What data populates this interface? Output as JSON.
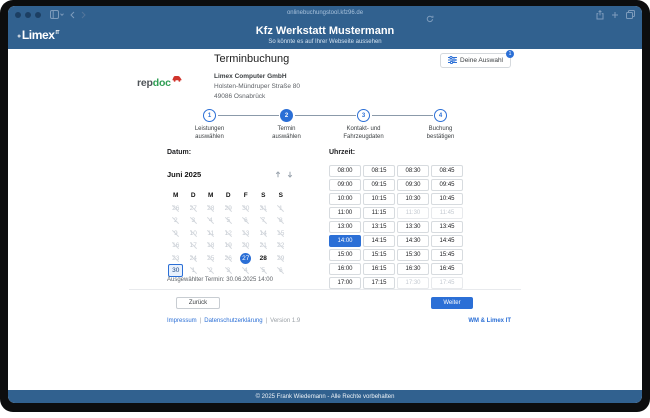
{
  "colors": {
    "accent": "#2b6fd6",
    "header_blue": "#31618f",
    "link": "#2b6fd6",
    "disabled": "#c4cad1"
  },
  "browser": {
    "url": "onlinebuchungstool.kfz96.de"
  },
  "header": {
    "logo_text": "Limex",
    "logo_sup": "IT",
    "title": "Kfz Werkstatt Mustermann",
    "subtitle": "So könnte es auf Ihrer Webseite aussehen"
  },
  "booking": {
    "title": "Terminbuchung",
    "brand": {
      "rep": "rep",
      "doc": "doc"
    },
    "company": {
      "name": "Limex Computer GmbH",
      "street": "Holsten-Mündruper Straße 80",
      "city": "49086 Osnabrück"
    },
    "selection_button": {
      "label": "Deine Auswahl",
      "badge": "1"
    },
    "steps": [
      {
        "num": "1",
        "line1": "Leistungen",
        "line2": "auswählen",
        "active": false
      },
      {
        "num": "2",
        "line1": "Termin",
        "line2": "auswählen",
        "active": true
      },
      {
        "num": "3",
        "line1": "Kontakt- und",
        "line2": "Fahrzeugdaten",
        "active": false
      },
      {
        "num": "4",
        "line1": "Buchung",
        "line2": "bestätigen",
        "active": false
      }
    ],
    "date": {
      "label": "Datum:",
      "month": "Juni 2025",
      "weekdays": [
        "M",
        "D",
        "M",
        "D",
        "F",
        "S",
        "S"
      ],
      "days": [
        {
          "n": "26",
          "s": "off"
        },
        {
          "n": "27",
          "s": "off"
        },
        {
          "n": "28",
          "s": "off"
        },
        {
          "n": "29",
          "s": "off"
        },
        {
          "n": "30",
          "s": "off"
        },
        {
          "n": "31",
          "s": "off"
        },
        {
          "n": "1",
          "s": "off"
        },
        {
          "n": "2",
          "s": "off"
        },
        {
          "n": "3",
          "s": "off"
        },
        {
          "n": "4",
          "s": "off"
        },
        {
          "n": "5",
          "s": "off"
        },
        {
          "n": "6",
          "s": "off"
        },
        {
          "n": "7",
          "s": "off"
        },
        {
          "n": "8",
          "s": "off"
        },
        {
          "n": "9",
          "s": "off"
        },
        {
          "n": "10",
          "s": "off"
        },
        {
          "n": "11",
          "s": "off"
        },
        {
          "n": "12",
          "s": "off"
        },
        {
          "n": "13",
          "s": "off"
        },
        {
          "n": "14",
          "s": "off"
        },
        {
          "n": "15",
          "s": "off"
        },
        {
          "n": "16",
          "s": "off"
        },
        {
          "n": "17",
          "s": "off"
        },
        {
          "n": "18",
          "s": "off"
        },
        {
          "n": "19",
          "s": "off"
        },
        {
          "n": "20",
          "s": "off"
        },
        {
          "n": "21",
          "s": "off"
        },
        {
          "n": "22",
          "s": "off"
        },
        {
          "n": "23",
          "s": "off"
        },
        {
          "n": "24",
          "s": "off"
        },
        {
          "n": "25",
          "s": "off"
        },
        {
          "n": "26",
          "s": "off"
        },
        {
          "n": "27",
          "s": "today"
        },
        {
          "n": "28",
          "s": "free"
        },
        {
          "n": "29",
          "s": "off"
        },
        {
          "n": "30",
          "s": "sel"
        },
        {
          "n": "1",
          "s": "off"
        },
        {
          "n": "2",
          "s": "off"
        },
        {
          "n": "3",
          "s": "off"
        },
        {
          "n": "4",
          "s": "off"
        },
        {
          "n": "5",
          "s": "off"
        },
        {
          "n": "6",
          "s": "off"
        }
      ]
    },
    "time": {
      "label": "Uhrzeit:",
      "slots": [
        {
          "t": "08:00",
          "s": "free"
        },
        {
          "t": "08:15",
          "s": "free"
        },
        {
          "t": "08:30",
          "s": "free"
        },
        {
          "t": "08:45",
          "s": "free"
        },
        {
          "t": "09:00",
          "s": "free"
        },
        {
          "t": "09:15",
          "s": "free"
        },
        {
          "t": "09:30",
          "s": "free"
        },
        {
          "t": "09:45",
          "s": "free"
        },
        {
          "t": "10:00",
          "s": "free"
        },
        {
          "t": "10:15",
          "s": "free"
        },
        {
          "t": "10:30",
          "s": "free"
        },
        {
          "t": "10:45",
          "s": "free"
        },
        {
          "t": "11:00",
          "s": "free"
        },
        {
          "t": "11:15",
          "s": "free"
        },
        {
          "t": "11:30",
          "s": "off"
        },
        {
          "t": "11:45",
          "s": "off"
        },
        {
          "t": "13:00",
          "s": "free"
        },
        {
          "t": "13:15",
          "s": "free"
        },
        {
          "t": "13:30",
          "s": "free"
        },
        {
          "t": "13:45",
          "s": "free"
        },
        {
          "t": "14:00",
          "s": "sel"
        },
        {
          "t": "14:15",
          "s": "free"
        },
        {
          "t": "14:30",
          "s": "free"
        },
        {
          "t": "14:45",
          "s": "free"
        },
        {
          "t": "15:00",
          "s": "free"
        },
        {
          "t": "15:15",
          "s": "free"
        },
        {
          "t": "15:30",
          "s": "free"
        },
        {
          "t": "15:45",
          "s": "free"
        },
        {
          "t": "16:00",
          "s": "free"
        },
        {
          "t": "16:15",
          "s": "free"
        },
        {
          "t": "16:30",
          "s": "free"
        },
        {
          "t": "16:45",
          "s": "free"
        },
        {
          "t": "17:00",
          "s": "free"
        },
        {
          "t": "17:15",
          "s": "free"
        },
        {
          "t": "17:30",
          "s": "off"
        },
        {
          "t": "17:45",
          "s": "off"
        }
      ]
    },
    "selected": {
      "label": "Ausgewählter Termin:",
      "value": "30.06.2025 14:00"
    },
    "back": "Zurück",
    "next": "Weiter",
    "footer": {
      "links": [
        "Impressum",
        "Datenschutzerklärung"
      ],
      "sep": "|",
      "version": "Version 1.9",
      "right": "WM & Limex IT"
    }
  },
  "bottom_bar": "© 2025 Frank Wiedemann - Alle Rechte vorbehalten"
}
